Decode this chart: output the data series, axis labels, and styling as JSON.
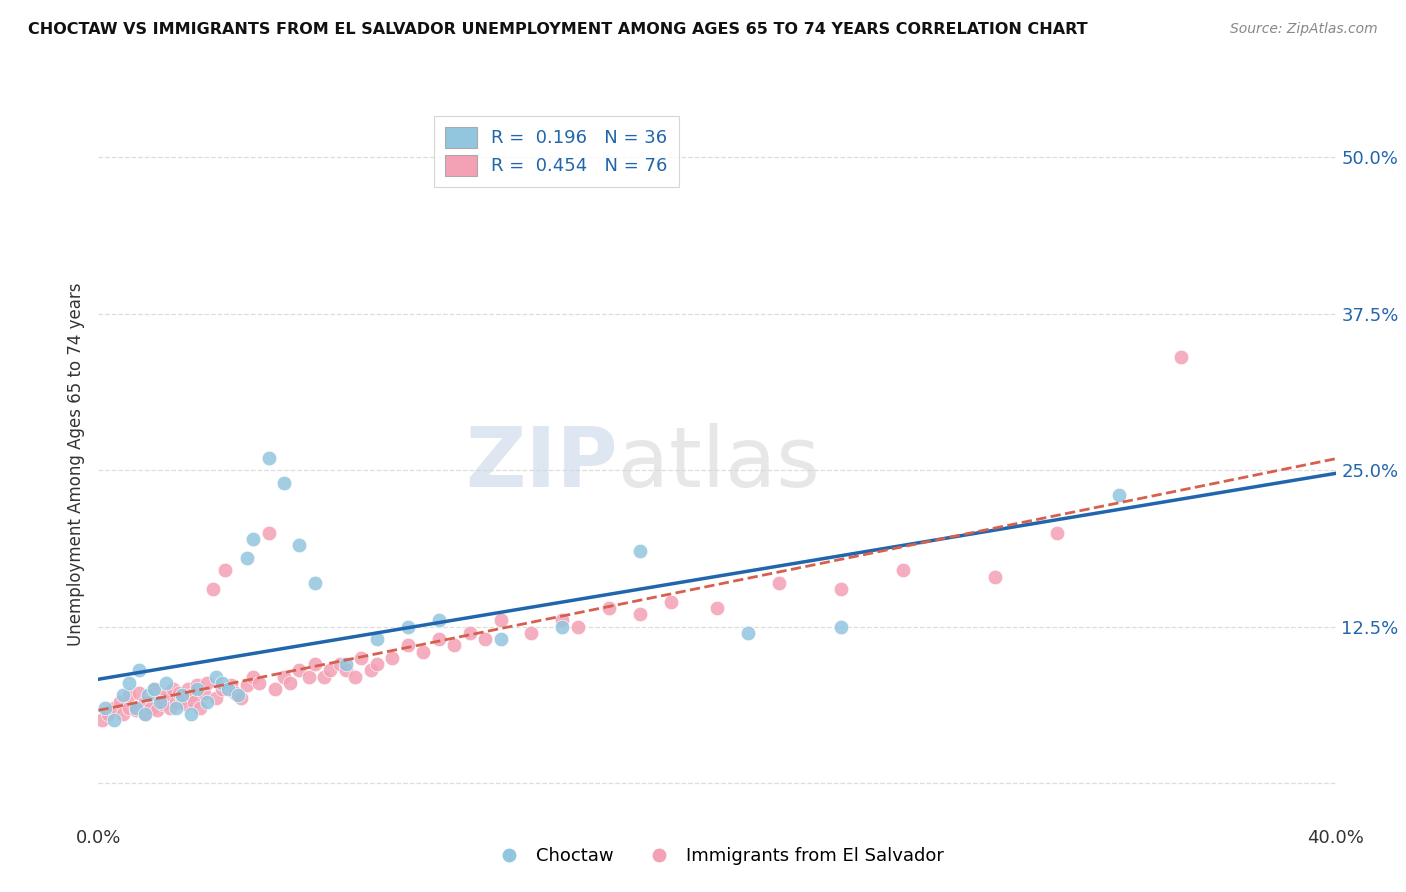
{
  "title": "CHOCTAW VS IMMIGRANTS FROM EL SALVADOR UNEMPLOYMENT AMONG AGES 65 TO 74 YEARS CORRELATION CHART",
  "source": "Source: ZipAtlas.com",
  "ylabel": "Unemployment Among Ages 65 to 74 years",
  "xlim": [
    0.0,
    0.4
  ],
  "ylim": [
    -0.03,
    0.54
  ],
  "ytick_positions": [
    0.0,
    0.125,
    0.25,
    0.375,
    0.5
  ],
  "ytick_labels": [
    "",
    "12.5%",
    "25.0%",
    "37.5%",
    "50.0%"
  ],
  "background_color": "#ffffff",
  "grid_color": "#dddddd",
  "choctaw_color": "#92c5de",
  "salvador_color": "#f4a0b5",
  "choctaw_line_color": "#2166ac",
  "salvador_line_color": "#d6604d",
  "legend_R1": "0.196",
  "legend_N1": "36",
  "legend_R2": "0.454",
  "legend_N2": "76",
  "choctaw_x": [
    0.002,
    0.005,
    0.008,
    0.01,
    0.012,
    0.013,
    0.015,
    0.016,
    0.018,
    0.02,
    0.022,
    0.025,
    0.027,
    0.03,
    0.032,
    0.035,
    0.038,
    0.04,
    0.042,
    0.045,
    0.048,
    0.05,
    0.055,
    0.06,
    0.065,
    0.07,
    0.08,
    0.09,
    0.1,
    0.11,
    0.13,
    0.15,
    0.175,
    0.21,
    0.24,
    0.33
  ],
  "choctaw_y": [
    0.06,
    0.05,
    0.07,
    0.08,
    0.06,
    0.09,
    0.055,
    0.07,
    0.075,
    0.065,
    0.08,
    0.06,
    0.07,
    0.055,
    0.075,
    0.065,
    0.085,
    0.08,
    0.075,
    0.07,
    0.18,
    0.195,
    0.26,
    0.24,
    0.19,
    0.16,
    0.095,
    0.115,
    0.125,
    0.13,
    0.115,
    0.125,
    0.185,
    0.12,
    0.125,
    0.23
  ],
  "salvador_x": [
    0.001,
    0.003,
    0.005,
    0.007,
    0.008,
    0.01,
    0.01,
    0.012,
    0.013,
    0.015,
    0.015,
    0.017,
    0.018,
    0.019,
    0.02,
    0.021,
    0.022,
    0.023,
    0.024,
    0.025,
    0.026,
    0.027,
    0.028,
    0.029,
    0.03,
    0.031,
    0.032,
    0.033,
    0.034,
    0.035,
    0.037,
    0.038,
    0.04,
    0.041,
    0.043,
    0.044,
    0.046,
    0.048,
    0.05,
    0.052,
    0.055,
    0.057,
    0.06,
    0.062,
    0.065,
    0.068,
    0.07,
    0.073,
    0.075,
    0.078,
    0.08,
    0.083,
    0.085,
    0.088,
    0.09,
    0.095,
    0.1,
    0.105,
    0.11,
    0.115,
    0.12,
    0.125,
    0.13,
    0.14,
    0.15,
    0.155,
    0.165,
    0.175,
    0.185,
    0.2,
    0.22,
    0.24,
    0.26,
    0.29,
    0.31,
    0.35
  ],
  "salvador_y": [
    0.05,
    0.055,
    0.06,
    0.065,
    0.055,
    0.06,
    0.07,
    0.058,
    0.072,
    0.055,
    0.065,
    0.06,
    0.075,
    0.058,
    0.068,
    0.063,
    0.07,
    0.06,
    0.075,
    0.065,
    0.072,
    0.068,
    0.063,
    0.075,
    0.07,
    0.065,
    0.078,
    0.06,
    0.072,
    0.08,
    0.155,
    0.068,
    0.075,
    0.17,
    0.078,
    0.072,
    0.068,
    0.078,
    0.085,
    0.08,
    0.2,
    0.075,
    0.085,
    0.08,
    0.09,
    0.085,
    0.095,
    0.085,
    0.09,
    0.095,
    0.09,
    0.085,
    0.1,
    0.09,
    0.095,
    0.1,
    0.11,
    0.105,
    0.115,
    0.11,
    0.12,
    0.115,
    0.13,
    0.12,
    0.13,
    0.125,
    0.14,
    0.135,
    0.145,
    0.14,
    0.16,
    0.155,
    0.17,
    0.165,
    0.2,
    0.34
  ]
}
